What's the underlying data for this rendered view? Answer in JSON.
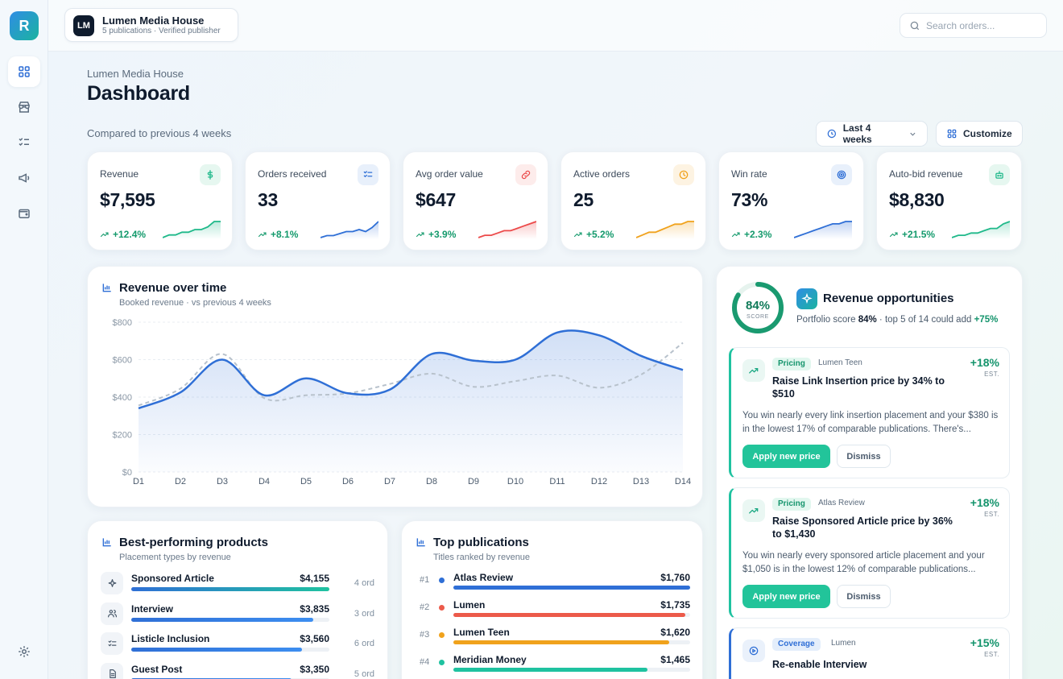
{
  "app": {
    "logo_letter": "R"
  },
  "sidebar": {
    "items": [
      {
        "name": "dashboard",
        "icon": "grid-icon"
      },
      {
        "name": "marketplace",
        "icon": "store-icon"
      },
      {
        "name": "orders",
        "icon": "checklist-icon"
      },
      {
        "name": "campaigns",
        "icon": "megaphone-icon"
      },
      {
        "name": "wallet",
        "icon": "wallet-icon"
      }
    ],
    "settings_icon": "gear-icon"
  },
  "header": {
    "brand_initials": "LM",
    "brand_name": "Lumen Media House",
    "brand_subtitle": "5 publications · Verified publisher",
    "search_placeholder": "Search orders..."
  },
  "page": {
    "eyebrow": "Lumen Media House",
    "title": "Dashboard",
    "compare_text": "Compared to previous 4 weeks",
    "range_label": "Last 4 weeks",
    "customize_label": "Customize"
  },
  "kpis": [
    {
      "label": "Revenue",
      "value": "$7,595",
      "delta": "+12.4%",
      "color": "#1fb98a",
      "icon": "dollar-icon",
      "spark": [
        3,
        4,
        4,
        5,
        5,
        6,
        6,
        7,
        9,
        9
      ]
    },
    {
      "label": "Orders received",
      "value": "33",
      "delta": "+8.1%",
      "color": "#2f6fd6",
      "icon": "checklist-icon",
      "spark": [
        2,
        3,
        3,
        4,
        5,
        5,
        6,
        5,
        7,
        10
      ]
    },
    {
      "label": "Avg order value",
      "value": "$647",
      "delta": "+3.9%",
      "color": "#ec4a4a",
      "icon": "link-icon",
      "spark": [
        2,
        3,
        3,
        4,
        5,
        5,
        6,
        7,
        8,
        9
      ]
    },
    {
      "label": "Active orders",
      "value": "25",
      "delta": "+5.2%",
      "color": "#f0a21c",
      "icon": "clock-icon",
      "spark": [
        2,
        3,
        4,
        4,
        5,
        6,
        7,
        7,
        8,
        8
      ]
    },
    {
      "label": "Win rate",
      "value": "73%",
      "delta": "+2.3%",
      "color": "#2f6fd6",
      "icon": "target-icon",
      "spark": [
        2,
        3,
        4,
        5,
        6,
        7,
        8,
        8,
        9,
        9
      ]
    },
    {
      "label": "Auto-bid revenue",
      "value": "$8,830",
      "delta": "+21.5%",
      "color": "#1fb98a",
      "icon": "robot-icon",
      "spark": [
        2,
        3,
        3,
        4,
        4,
        5,
        6,
        6,
        8,
        9
      ]
    }
  ],
  "revenue_chart": {
    "title": "Revenue over time",
    "subtitle": "Booked revenue · vs previous 4 weeks",
    "chart_data": {
      "type": "line",
      "categories": [
        "D1",
        "D2",
        "D3",
        "D4",
        "D5",
        "D6",
        "D7",
        "D8",
        "D9",
        "D10",
        "D11",
        "D12",
        "D13",
        "D14"
      ],
      "ylim": [
        0,
        800
      ],
      "y_ticks": [
        "$0",
        "$200",
        "$400",
        "$600",
        "$800"
      ],
      "grid": true,
      "series": [
        {
          "values": [
            340,
            425,
            600,
            410,
            500,
            420,
            440,
            630,
            595,
            600,
            745,
            730,
            620,
            545
          ],
          "color": "#2f6fd6",
          "style": "solid-area"
        },
        {
          "values": [
            355,
            445,
            630,
            395,
            410,
            420,
            470,
            525,
            455,
            485,
            515,
            450,
            520,
            690
          ],
          "color": "#b8c2cc",
          "style": "dashed"
        }
      ]
    }
  },
  "products": {
    "title": "Best-performing products",
    "subtitle": "Placement types by revenue",
    "items": [
      {
        "name": "Sponsored Article",
        "value": "$4,155",
        "orders": "4 ord",
        "fill": 1.0,
        "icon": "sparkle-icon",
        "teal": true
      },
      {
        "name": "Interview",
        "value": "$3,835",
        "orders": "3 ord",
        "fill": 0.92,
        "icon": "users-icon",
        "teal": false
      },
      {
        "name": "Listicle Inclusion",
        "value": "$3,560",
        "orders": "6 ord",
        "fill": 0.86,
        "icon": "checklist-icon",
        "teal": false
      },
      {
        "name": "Guest Post",
        "value": "$3,350",
        "orders": "5 ord",
        "fill": 0.81,
        "icon": "doc-icon",
        "teal": false
      }
    ]
  },
  "publications": {
    "title": "Top publications",
    "subtitle": "Titles ranked by revenue",
    "items": [
      {
        "rank": "#1",
        "name": "Atlas Review",
        "value": "$1,760",
        "fill": 1.0,
        "color": "#2f6fd6"
      },
      {
        "rank": "#2",
        "name": "Lumen",
        "value": "$1,735",
        "fill": 0.98,
        "color": "#ec5a4a"
      },
      {
        "rank": "#3",
        "name": "Lumen Teen",
        "value": "$1,620",
        "fill": 0.91,
        "color": "#f0a21c"
      },
      {
        "rank": "#4",
        "name": "Meridian Money",
        "value": "$1,465",
        "fill": 0.82,
        "color": "#1fc2a0"
      }
    ]
  },
  "opportunities": {
    "score": "84%",
    "score_fraction": 0.84,
    "score_label": "SCORE",
    "title": "Revenue opportunities",
    "summary_prefix": "Portfolio score ",
    "summary_score": "84%",
    "summary_mid": " · top 5 of 14 could add ",
    "summary_add": "+75%",
    "apply_label": "Apply new price",
    "dismiss_label": "Dismiss",
    "est_label": "EST.",
    "items": [
      {
        "tag": "Pricing",
        "publication": "Lumen Teen",
        "pct": "+18%",
        "title": "Raise Link Insertion price by 34% to $510",
        "body": "You win nearly every link insertion placement and your $380 is in the lowest 17% of comparable publications. There's..."
      },
      {
        "tag": "Pricing",
        "publication": "Atlas Review",
        "pct": "+18%",
        "title": "Raise Sponsored Article price by 36% to $1,430",
        "body": "You win nearly every sponsored article placement and your $1,050 is in the lowest 12% of comparable publications..."
      },
      {
        "tag": "Coverage",
        "publication": "Lumen",
        "pct": "+15%",
        "title": "Re-enable Interview",
        "body": ""
      }
    ]
  }
}
